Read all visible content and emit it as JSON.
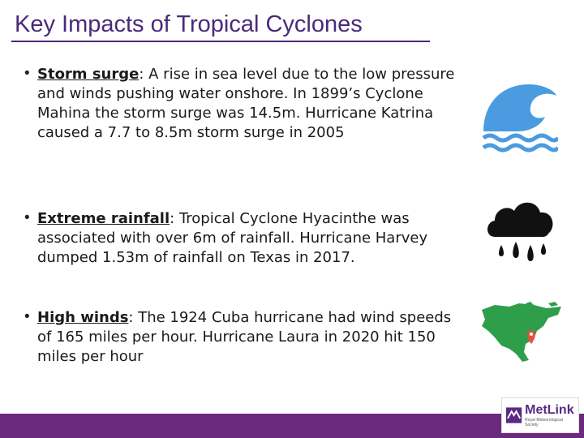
{
  "slide": {
    "title": "Key Impacts of Tropical Cyclones"
  },
  "bullets": [
    {
      "term": "Storm surge",
      "rest": ": A rise in sea level due to the low pressure and winds pushing water onshore. In 1899’s Cyclone Mahina the storm surge was 14.5m. Hurricane Katrina caused a 7.7 to 8.5m storm surge in 2005",
      "icon": "wave-icon"
    },
    {
      "term": "Extreme rainfall",
      "rest": ": Tropical Cyclone Hyacinthe was associated with over 6m of rainfall. Hurricane Harvey dumped 1.53m of rainfall on Texas in 2017.",
      "icon": "rain-cloud-icon"
    },
    {
      "term": "High winds",
      "rest": ": The 1924 Cuba hurricane had wind speeds of 165 miles per hour. Hurricane Laura in 2020 hit 150 miles per hour",
      "icon": "north-america-map-icon"
    }
  ],
  "footer": {
    "logo_name": "MetLink",
    "logo_tagline": "Royal Meteorological Society",
    "bar_color": "#6b2a7e"
  },
  "colors": {
    "title": "#4a2a7a",
    "wave": "#4a9be0",
    "map": "#2e9e4a",
    "marker": "#e0553a"
  }
}
